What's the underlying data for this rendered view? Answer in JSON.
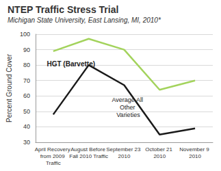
{
  "chart_data": {
    "type": "line",
    "title": "NTEP Traffic Stress Trial",
    "subtitle": "Michigan State University, East Lansing, MI, 2010*",
    "y_label": "Percent Ground Cover",
    "categories": [
      "April Recovery from 2009 Traffic",
      "August Before Fall 2010 Traffic",
      "September 23 2010",
      "October 21 2010",
      "November 9 2010"
    ],
    "series": [
      {
        "name": "HGT (Barvette)",
        "color": "#a3d35c",
        "values": [
          89,
          97,
          90,
          64,
          70
        ]
      },
      {
        "name": "Average All Other Varieties",
        "color": "#1a1a1a",
        "values": [
          48,
          80,
          67,
          35,
          39
        ]
      }
    ],
    "ylim": [
      30,
      100
    ],
    "yticks": [
      30,
      40,
      50,
      60,
      70,
      80,
      90,
      100
    ],
    "grid": true
  }
}
